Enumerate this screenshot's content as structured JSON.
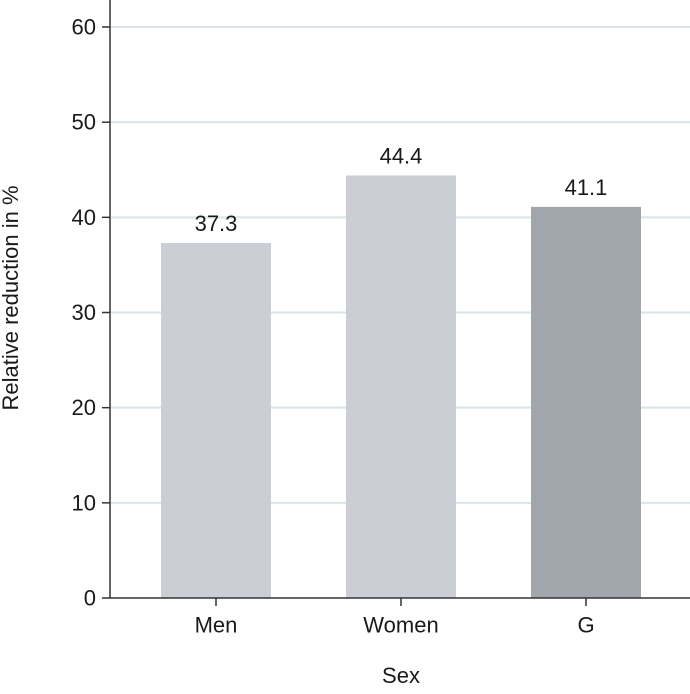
{
  "chart_data": {
    "type": "bar",
    "title": "",
    "xlabel": "Sex",
    "ylabel": "Relative reduction in %",
    "categories": [
      "Men",
      "Women",
      "G"
    ],
    "values": [
      37.3,
      44.4,
      41.1
    ],
    "data_labels": [
      "37.3",
      "44.4",
      "41.1"
    ],
    "bar_colors": [
      "#cbced5",
      "#cbced5",
      "#a1a6ad"
    ],
    "ylim": [
      0,
      60
    ],
    "yticks": [
      0,
      10,
      20,
      30,
      40,
      50,
      60
    ],
    "ytick_labels": [
      "0",
      "10",
      "20",
      "30",
      "40",
      "50",
      "60"
    ],
    "grid": true,
    "grid_color": "#d9e3e8"
  }
}
